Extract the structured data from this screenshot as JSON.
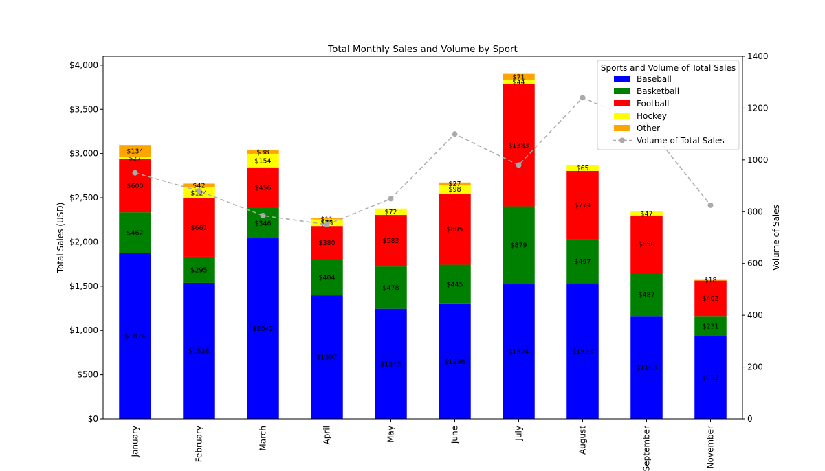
{
  "chart_data": {
    "type": "bar",
    "stacked": true,
    "title": "Total Monthly Sales and Volume by Sport",
    "xlabel": "",
    "ylabel": "Total Sales (USD)",
    "y2label": "Volume of Sales",
    "ylim": [
      0,
      4100
    ],
    "y2lim": [
      0,
      1400
    ],
    "yticks": [
      "$0",
      "$500",
      "$1,000",
      "$1,500",
      "$2,000",
      "$2,500",
      "$3,000",
      "$3,500",
      "$4,000"
    ],
    "ytick_values": [
      0,
      500,
      1000,
      1500,
      2000,
      2500,
      3000,
      3500,
      4000
    ],
    "y2ticks": [
      "0",
      "200",
      "400",
      "600",
      "800",
      "1000",
      "1200",
      "1400"
    ],
    "y2tick_values": [
      0,
      200,
      400,
      600,
      800,
      1000,
      1200,
      1400
    ],
    "categories": [
      "January",
      "February",
      "March",
      "April",
      "May",
      "June",
      "July",
      "August",
      "September",
      "November"
    ],
    "series": [
      {
        "name": "Baseball",
        "color": "#0000ff",
        "values": [
          1874,
          1538,
          2042,
          1397,
          1245,
          1298,
          1524,
          1533,
          1163,
          932
        ],
        "labels": [
          "$1874",
          "$1538",
          "$2042",
          "$1397",
          "$1245",
          "$1298",
          "$1524",
          "$1533",
          "$1163",
          "$932"
        ]
      },
      {
        "name": "Basketball",
        "color": "#008000",
        "values": [
          462,
          295,
          346,
          404,
          478,
          445,
          879,
          497,
          487,
          231
        ],
        "labels": [
          "$462",
          "$295",
          "$346",
          "$404",
          "$478",
          "$445",
          "$879",
          "$497",
          "$487",
          "$231"
        ]
      },
      {
        "name": "Football",
        "color": "#ff0000",
        "values": [
          600,
          661,
          456,
          380,
          583,
          805,
          1383,
          774,
          650,
          402
        ],
        "labels": [
          "$600",
          "$661",
          "$456",
          "$380",
          "$583",
          "$805",
          "$1383",
          "$774",
          "$650",
          "$402"
        ]
      },
      {
        "name": "Hockey",
        "color": "#ffff00",
        "values": [
          27,
          124,
          154,
          75,
          72,
          98,
          44,
          65,
          47,
          18
        ],
        "labels": [
          "$27",
          "$124",
          "$154",
          "$75",
          "$72",
          "$98",
          "$44",
          "$65",
          "$47",
          "$18"
        ]
      },
      {
        "name": "Other",
        "color": "#ffa500",
        "values": [
          134,
          42,
          38,
          11,
          0,
          27,
          71,
          0,
          0,
          0
        ],
        "labels": [
          "$134",
          "$42",
          "$38",
          "$11",
          "",
          "$27",
          "$71",
          "",
          "",
          ""
        ]
      }
    ],
    "line_series": {
      "name": "Volume of Total Sales",
      "color": "#aaaaaa",
      "axis": "right",
      "values": [
        950,
        880,
        785,
        750,
        850,
        1100,
        980,
        1240,
        1135,
        825
      ]
    },
    "legend": {
      "title": "Sports and Volume of Total Sales",
      "placement": "top-right"
    },
    "grid": false
  }
}
